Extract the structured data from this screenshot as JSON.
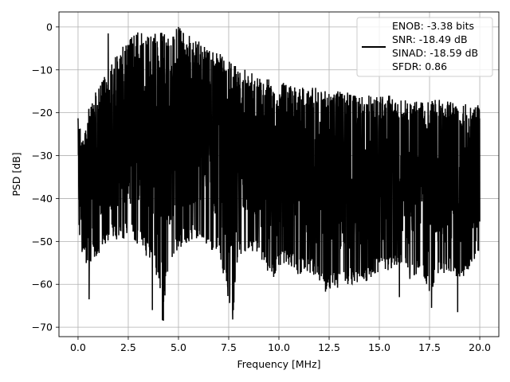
{
  "chart_data": {
    "type": "line",
    "title": "",
    "xlabel": "Frequency [MHz]",
    "ylabel": "PSD [dB]",
    "xlim": [
      -0.95,
      20.95
    ],
    "ylim": [
      -72.2,
      3.5
    ],
    "xticks": [
      0.0,
      2.5,
      5.0,
      7.5,
      10.0,
      12.5,
      15.0,
      17.5,
      20.0
    ],
    "xtick_labels": [
      "0.0",
      "2.5",
      "5.0",
      "7.5",
      "10.0",
      "12.5",
      "15.0",
      "17.5",
      "20.0"
    ],
    "yticks": [
      0,
      -10,
      -20,
      -30,
      -40,
      -50,
      -60,
      -70
    ],
    "ytick_labels": [
      "0",
      "−10",
      "−20",
      "−30",
      "−40",
      "−50",
      "−60",
      "−70"
    ],
    "grid": true,
    "legend_position": "top-right",
    "series_color": "#000000",
    "legend_lines": [
      "ENOB: -3.38 bits",
      "SNR: -18.49 dB",
      "SINAD: -18.59 dB",
      "SFDR: 0.86"
    ],
    "series": [
      {
        "name": "ENOB: -3.38 bits\nSNR: -18.49 dB\nSINAD: -18.59 dB\nSFDR: 0.86",
        "upper_envelope": {
          "x": [
            0.0,
            0.3,
            0.6,
            1.0,
            1.5,
            2.0,
            2.5,
            3.0,
            3.5,
            4.0,
            4.5,
            5.0,
            5.5,
            6.0,
            6.5,
            7.0,
            7.5,
            8.0,
            8.5,
            9.0,
            9.5,
            10.0,
            10.5,
            11.0,
            11.5,
            12.0,
            12.5,
            13.0,
            13.5,
            14.0,
            14.5,
            15.0,
            15.5,
            16.0,
            16.5,
            17.0,
            17.5,
            18.0,
            18.5,
            19.0,
            19.5,
            20.0
          ],
          "y": [
            -21,
            -25,
            -17,
            -14,
            -10,
            -5,
            -3,
            -1,
            -2,
            -1,
            -2,
            0,
            -2,
            -3,
            -5,
            -6,
            -8,
            -9,
            -10,
            -11,
            -12,
            -13,
            -13,
            -14,
            -14,
            -14,
            -15,
            -15,
            -15,
            -16,
            -16,
            -16,
            -16,
            -17,
            -17,
            -17,
            -17,
            -17,
            -17,
            -18,
            -18,
            -18
          ]
        },
        "lower_envelope": {
          "x": [
            0.0,
            0.2,
            0.5,
            1.0,
            1.5,
            2.0,
            2.5,
            3.0,
            3.5,
            4.0,
            4.2,
            4.5,
            5.0,
            5.5,
            6.0,
            6.5,
            7.0,
            7.7,
            8.0,
            8.5,
            9.0,
            9.7,
            10.0,
            10.5,
            11.0,
            11.5,
            12.0,
            12.3,
            12.8,
            13.5,
            14.0,
            14.5,
            15.0,
            15.5,
            16.0,
            16.5,
            17.0,
            17.5,
            18.0,
            18.5,
            19.0,
            19.5,
            20.0
          ],
          "y": [
            -48,
            -53,
            -56,
            -53,
            -50,
            -50,
            -49,
            -51,
            -54,
            -59,
            -68.5,
            -56,
            -52,
            -50,
            -50,
            -52,
            -53,
            -68,
            -54,
            -53,
            -54,
            -59,
            -56,
            -56,
            -58,
            -57,
            -60,
            -62,
            -61,
            -60,
            -60,
            -59,
            -57,
            -57,
            -55,
            -59,
            -57,
            -62,
            -58,
            -57,
            -60,
            -56,
            -52
          ]
        },
        "notable_points": [
          {
            "x": 0.0,
            "y": -21.3
          },
          {
            "x": 0.55,
            "y": -63.5
          },
          {
            "x": 1.5,
            "y": -1.5
          },
          {
            "x": 3.7,
            "y": -66.0
          },
          {
            "x": 4.25,
            "y": -68.5
          },
          {
            "x": 5.0,
            "y": 0.0
          },
          {
            "x": 7.7,
            "y": -68.2
          },
          {
            "x": 16.0,
            "y": -63.0
          },
          {
            "x": 17.6,
            "y": -65.5
          },
          {
            "x": 18.9,
            "y": -66.5
          }
        ]
      }
    ]
  }
}
